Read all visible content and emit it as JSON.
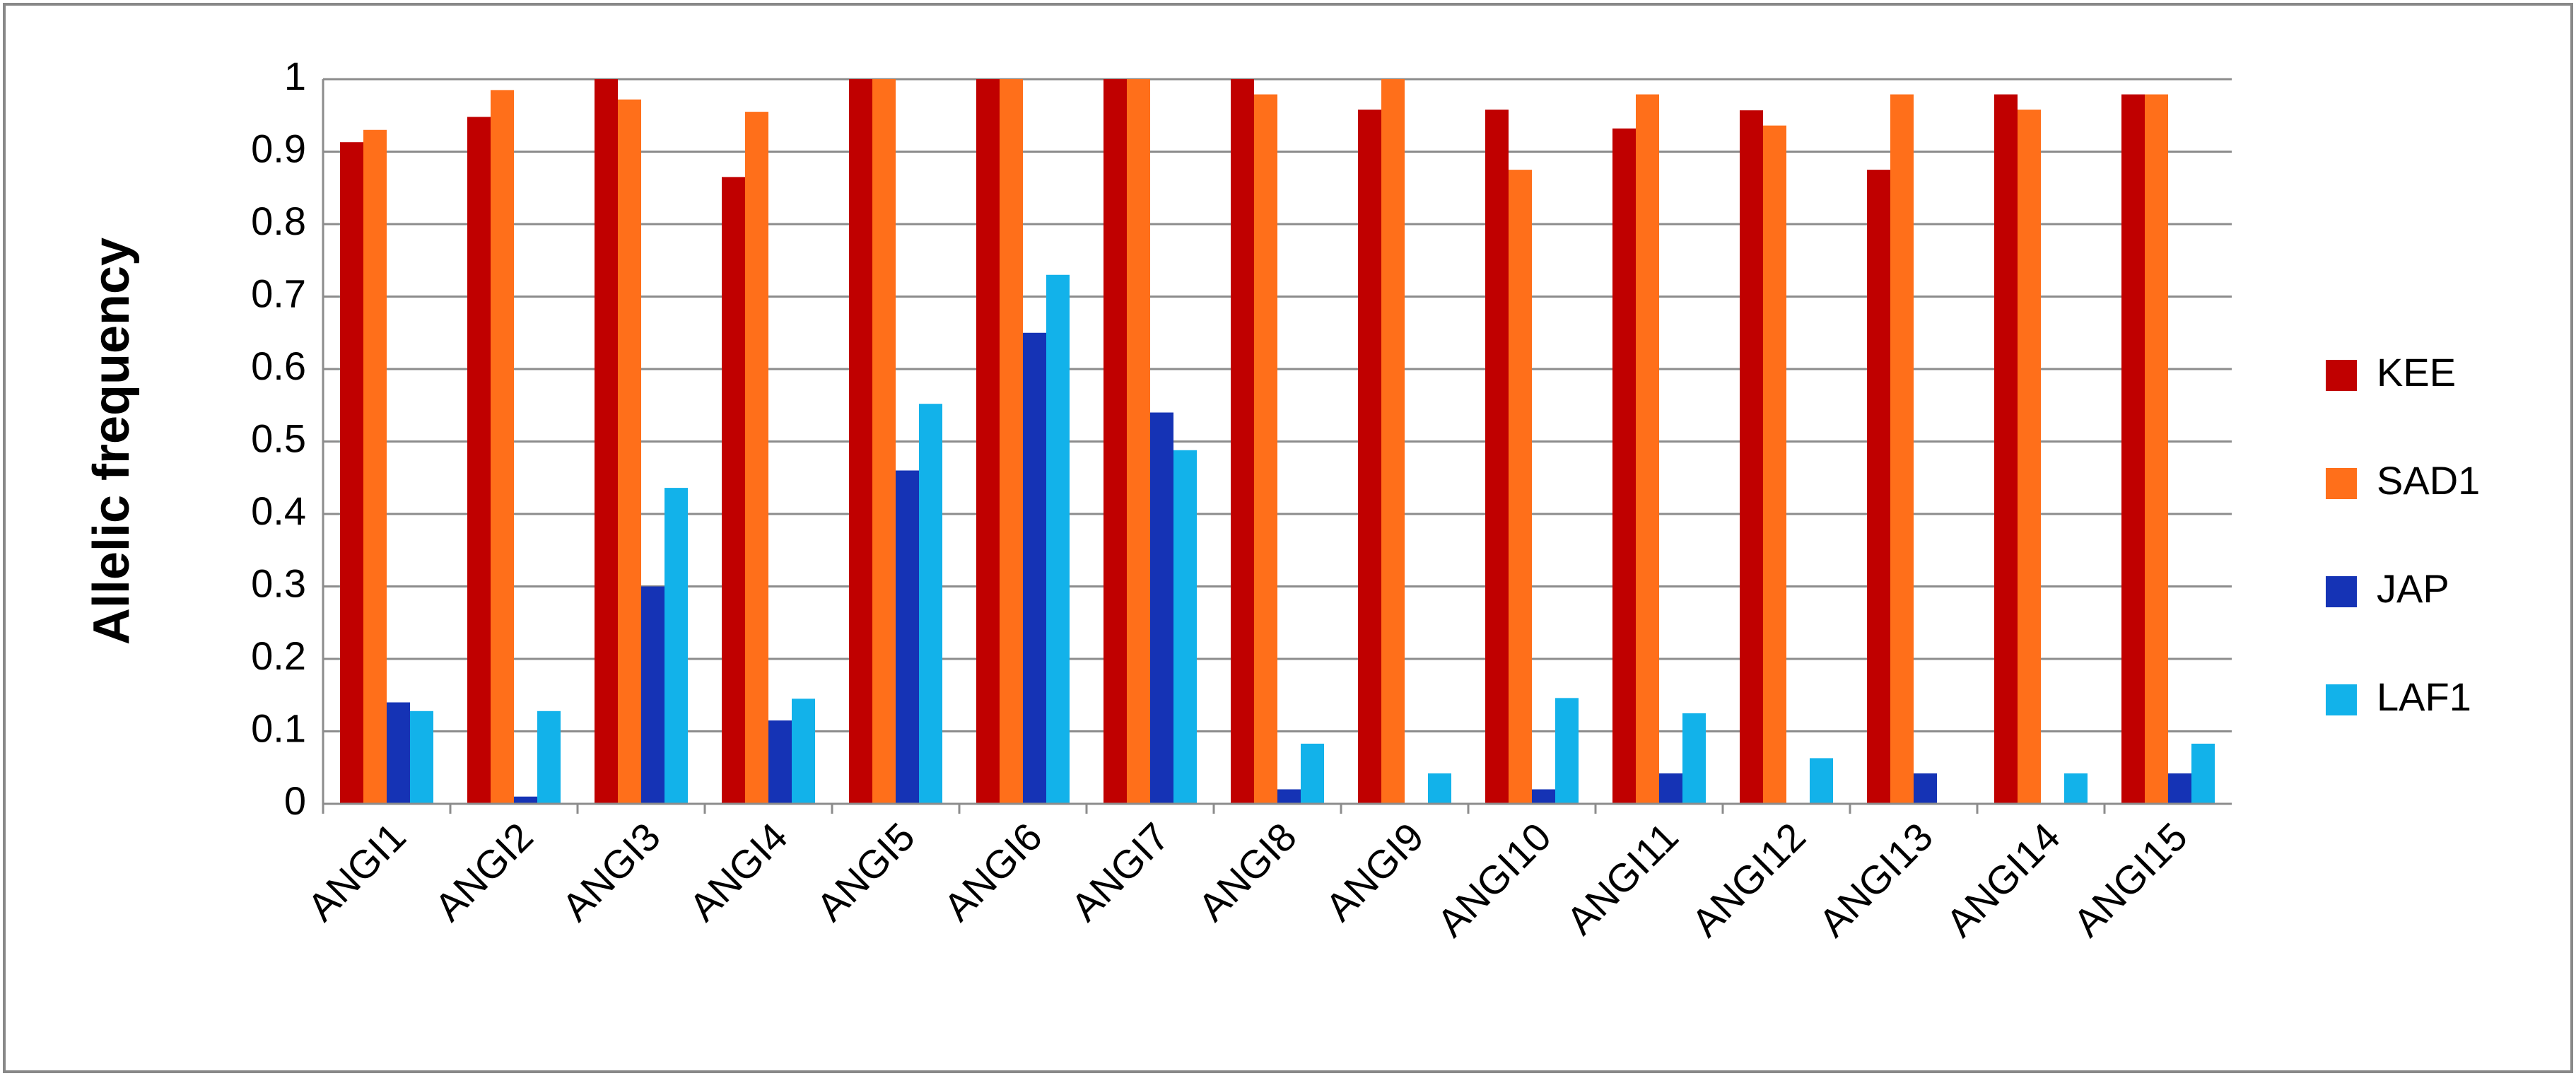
{
  "chart_data": {
    "type": "bar",
    "y_label": "Allelic frequency",
    "categories": [
      "ANGI1",
      "ANGI2",
      "ANGI3",
      "ANGI4",
      "ANGI5",
      "ANGI6",
      "ANGI7",
      "ANGI8",
      "ANGI9",
      "ANGI10",
      "ANGI11",
      "ANGI12",
      "ANGI13",
      "ANGI14",
      "ANGI15"
    ],
    "series": [
      {
        "name": "KEE",
        "color": "#c00000",
        "values": [
          0.913,
          0.948,
          1,
          0.865,
          1,
          1,
          1,
          1,
          0.958,
          0.958,
          0.932,
          0.957,
          0.875,
          0.979,
          0.979
        ]
      },
      {
        "name": "SAD1",
        "color": "#ff6f1a",
        "values": [
          0.93,
          0.985,
          0.972,
          0.955,
          1,
          1,
          1,
          0.979,
          1,
          0.875,
          0.979,
          0.936,
          0.979,
          0.958,
          0.979
        ]
      },
      {
        "name": "JAP",
        "color": "#1533b5",
        "values": [
          0.14,
          0.01,
          0.3,
          0.115,
          0.46,
          0.65,
          0.54,
          0.02,
          0,
          0.02,
          0.042,
          0,
          0.042,
          0,
          0.042
        ]
      },
      {
        "name": "LAF1",
        "color": "#12b2ea",
        "values": [
          0.128,
          0.128,
          0.436,
          0.145,
          0.552,
          0.73,
          0.488,
          0.083,
          0.042,
          0.146,
          0.125,
          0.063,
          0,
          0.042,
          0.083
        ]
      }
    ],
    "ylim": [
      0,
      1
    ],
    "yticks": [
      0,
      0.1,
      0.2,
      0.3,
      0.4,
      0.5,
      0.6,
      0.7,
      0.8,
      0.9,
      1
    ],
    "grid": true,
    "legend": "right"
  }
}
